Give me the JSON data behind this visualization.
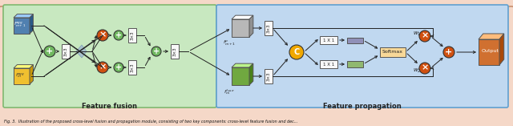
{
  "fig_width": 6.4,
  "fig_height": 1.57,
  "dpi": 100,
  "bg_outer": "#f5d8c8",
  "bg_fusion": "#c8e8c0",
  "bg_propagation": "#c0d8f0",
  "border_fusion": "#80b870",
  "border_propagation": "#60a0d0",
  "orange_circle": "#d05010",
  "green_circle": "#70b860",
  "yellow_box": "#f0c030",
  "blue_box": "#5080b0",
  "gray_box": "#b8b8b8",
  "orange_box_3d": "#d07030",
  "green_box_3d": "#70a840",
  "concat_circle": "#f0a800",
  "softmax_box": "#f8d898",
  "white_box": "#f8f8f8",
  "blue_gray_bar": "#9090b8",
  "green_bar": "#90b870",
  "caption": "Fig. 3.  Illustration of the proposed cross-level fusion and propagation module, consisting of two key components: cross-level feature fusion and dec...",
  "label_fusion": "Feature fusion",
  "label_propagation": "Feature propagation",
  "label_output": "Output"
}
